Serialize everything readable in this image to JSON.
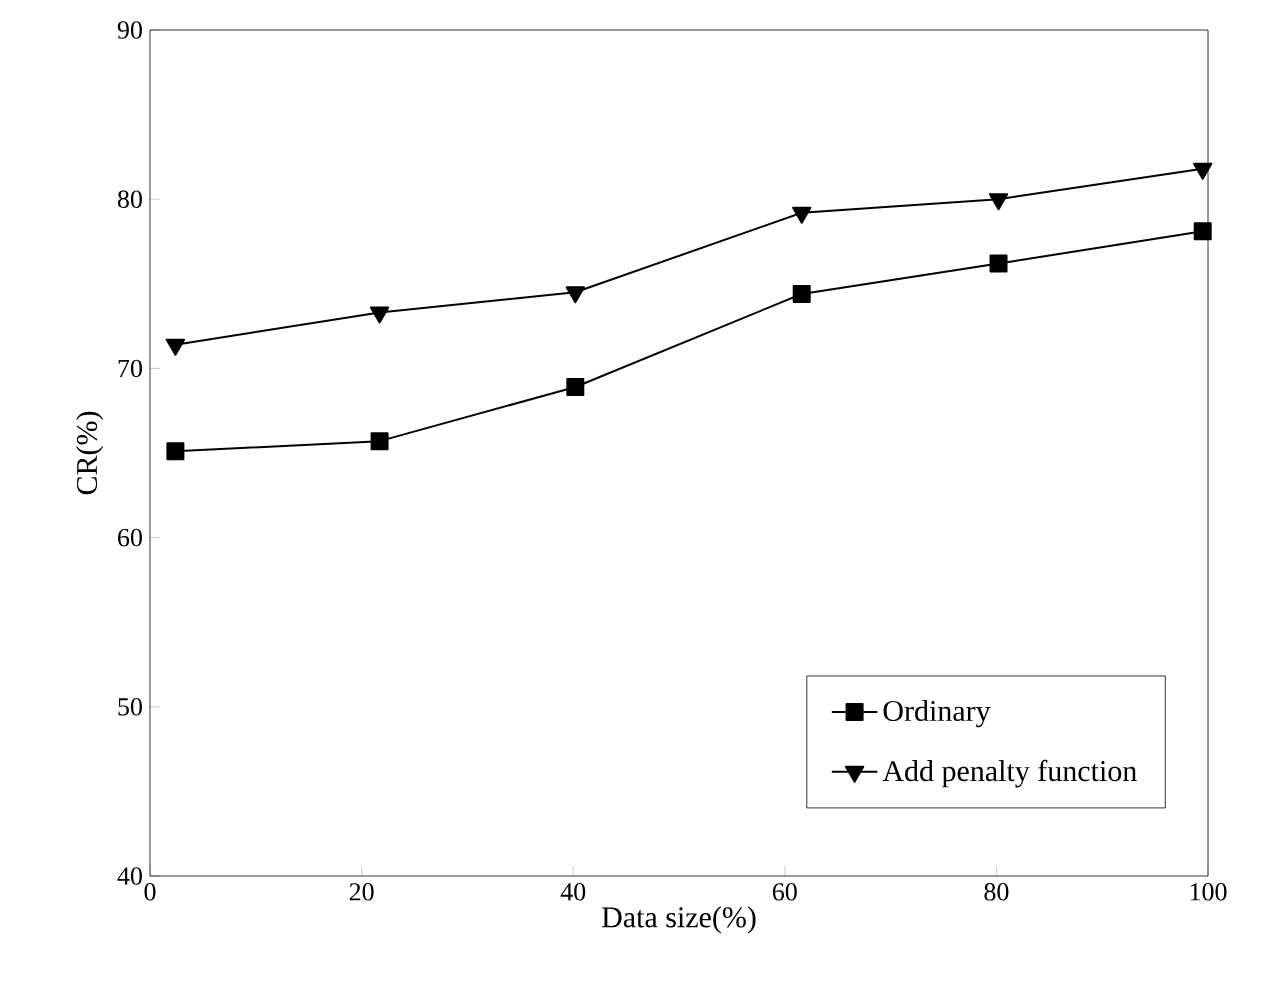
{
  "chart_data": {
    "type": "line",
    "xlabel": "Data size(%)",
    "ylabel": "CR(%)",
    "xlim": [
      0,
      100
    ],
    "ylim": [
      40,
      90
    ],
    "xticks": [
      0,
      20,
      40,
      60,
      80,
      100
    ],
    "yticks": [
      40,
      50,
      60,
      70,
      80,
      90
    ],
    "legend": "bottom right",
    "grid": false,
    "line_style": "solid",
    "series": [
      {
        "name": "Ordinary",
        "color": "#000000",
        "marker": "square",
        "x": [
          2.4,
          21.7,
          40.2,
          61.6,
          80.2,
          99.5
        ],
        "values": [
          65.1,
          65.7,
          68.9,
          74.4,
          76.2,
          78.1
        ]
      },
      {
        "name": "Add penalty function",
        "color": "#000000",
        "marker": "triangle",
        "x": [
          2.4,
          21.7,
          40.2,
          61.6,
          80.2,
          99.5
        ],
        "values": [
          71.4,
          73.3,
          74.5,
          79.2,
          80.0,
          81.8
        ]
      }
    ]
  }
}
